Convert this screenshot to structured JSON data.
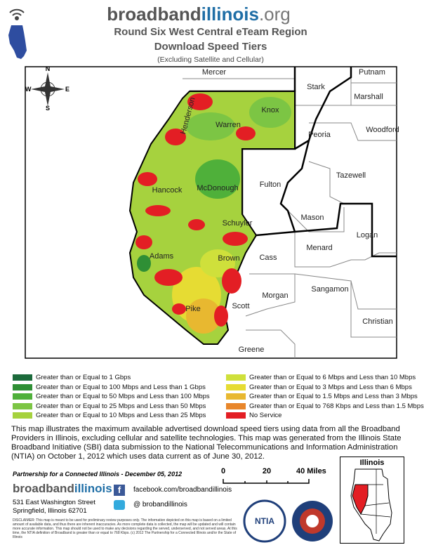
{
  "header": {
    "logo": [
      "broadband",
      "illinois",
      ".org"
    ],
    "title": "Round Six West Central eTeam Region",
    "subtitle": "Download Speed Tiers",
    "note": "(Excluding Satellite and Cellular)"
  },
  "map": {
    "compass": [
      "N",
      "S",
      "E",
      "W"
    ],
    "counties": [
      "Mercer",
      "Putnam",
      "Stark",
      "Marshall",
      "Knox",
      "Warren",
      "Henderson",
      "Peoria",
      "Woodford",
      "Tazewell",
      "Fulton",
      "Hancock",
      "McDonough",
      "Mason",
      "Logan",
      "Schuyler",
      "Menard",
      "Cass",
      "Adams",
      "Brown",
      "Sangamon",
      "Morgan",
      "Scott",
      "Pike",
      "Christian",
      "Greene"
    ]
  },
  "legend": {
    "items": [
      {
        "label": "Greater than or Equal to 1 Gbps",
        "color": "#1b6a3b"
      },
      {
        "label": "Greater than or Equal to 100 Mbps and Less than 1 Gbps",
        "color": "#2f8f35"
      },
      {
        "label": "Greater than or Equal to 50 Mbps and Less than 100 Mbps",
        "color": "#4fb03a"
      },
      {
        "label": "Greater than or Equal to 25 Mbps and Less than 50 Mbps",
        "color": "#7cc544"
      },
      {
        "label": "Greater than or Equal to 10 Mbps and Less than 25 Mbps",
        "color": "#a6d23e"
      },
      {
        "label": "Greater than or Equal to 6 Mbps and Less than 10 Mbps",
        "color": "#cfe03b"
      },
      {
        "label": "Greater than or Equal to 3 Mbps and Less than 6 Mbps",
        "color": "#e6dc33"
      },
      {
        "label": "Greater than or Equal to 1.5 Mbps and Less than 3 Mbps",
        "color": "#e8b830"
      },
      {
        "label": "Greater than or Equal to 768 Kbps and Less than 1.5 Mbps",
        "color": "#e8862a"
      },
      {
        "label": "No Service",
        "color": "#e31e24"
      }
    ]
  },
  "description": "This map illustrates the maximum available advertised download speed tiers using data from all the Broadband Providers in Illinois, excluding cellular and satellite technologies. This map was generated from the Illinois State Broadband Initiative (SBI) data submission to the National Telecommunications and Information Administration (NTIA) on October 1, 2012 which uses data current as of June 30, 2012.",
  "footer": {
    "partnership": "Partnership for a Connected Illinois - December 05, 2012",
    "scale": [
      "0",
      "20",
      "40 Miles"
    ],
    "inset_title": "Illinois",
    "org": [
      "broadband",
      "illinois"
    ],
    "address": [
      "531 East Washington Street",
      "Springfield, Illinois 62701"
    ],
    "facebook": "facebook.com/broadbandillinois",
    "twitter": "@ brobandillinois",
    "disclaimer": "DISCLAIMER: This map is meant to be used for preliminary review purposes only. The information depicted on this map is based on a limited amount of available data, and thus there are inherent inaccuracies. As more complete data is collected, the map will be updated and will contain more accurate information. This map should not be used to make any decisions regarding the served, underserved, and not served areas. At this time, the NTIA definition of Broadband is greater than or equal to 768 Kbps. (c) 2012 The Partnership for a Connected Illinois and/or the State of Illinois",
    "ntia": "NTIA"
  }
}
